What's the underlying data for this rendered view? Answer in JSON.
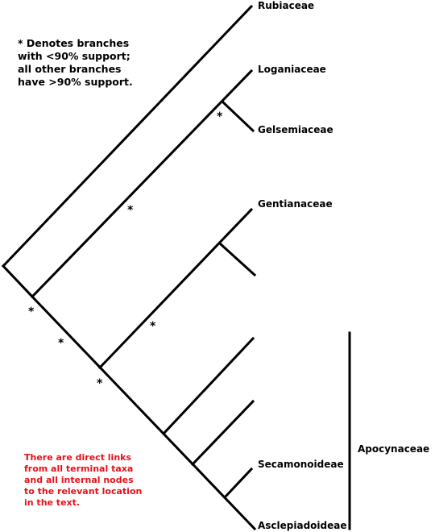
{
  "taxa": {
    "rubiaceae": "Rubiaceae",
    "loganiaceae": "Loganiaceae",
    "gelsemiaceae": "Gelsemiaceae",
    "gentianaceae": "Gentianaceae",
    "secamonoideae": "Secamonoideae",
    "asclepiadoideae": "Asclepiadoideae"
  },
  "clade_label": "Apocynaceae",
  "support_marker": "*",
  "legend_lines": [
    "* Denotes branches",
    "with <90% support;",
    "all other branches",
    "have >90% support."
  ],
  "note_lines": [
    "There are direct links",
    "from all terminal taxa",
    "and all internal nodes",
    "to the relevant location",
    "in the text."
  ],
  "colors": {
    "lines": "#000000",
    "note": "#e8101a"
  }
}
